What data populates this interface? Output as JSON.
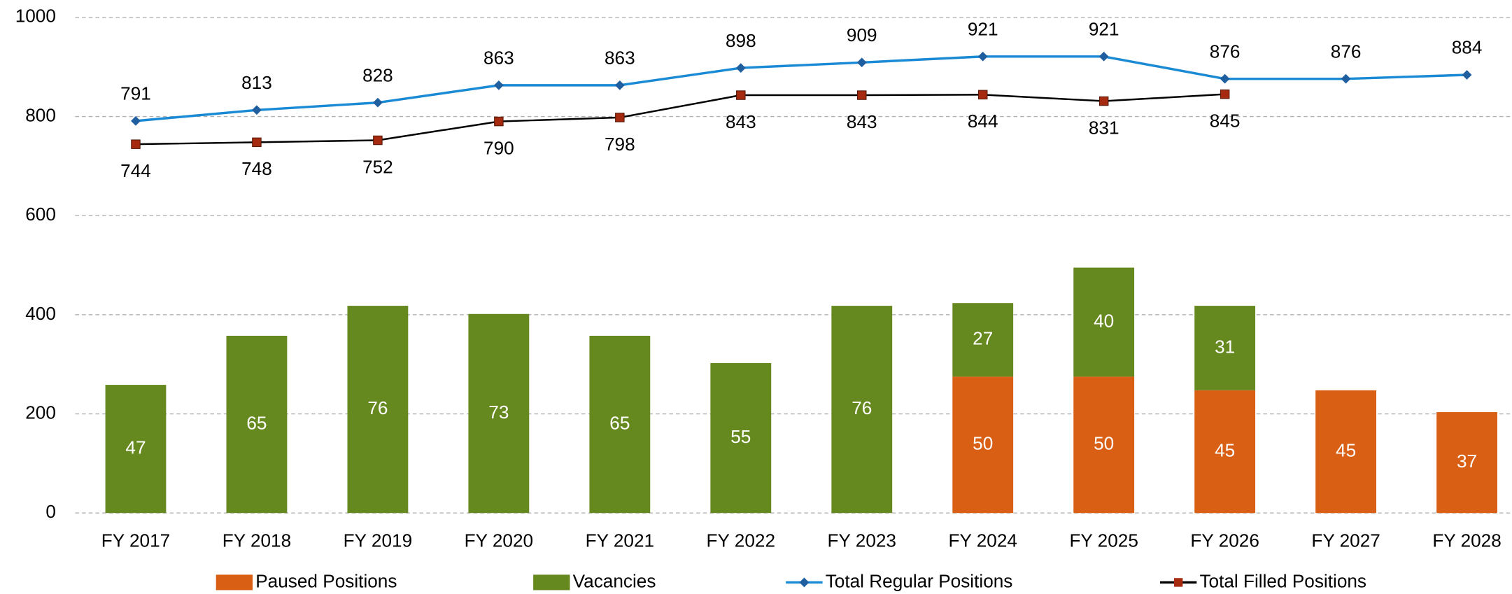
{
  "chart_data": {
    "type": "bar_line",
    "categories": [
      "FY 2017",
      "FY 2018",
      "FY 2019",
      "FY 2020",
      "FY 2021",
      "FY 2022",
      "FY 2023",
      "FY 2024",
      "FY 2025",
      "FY 2026",
      "FY 2027",
      "FY 2028"
    ],
    "series": [
      {
        "name": "Paused Positions",
        "type": "bar",
        "axis": "y2",
        "color": "#d95f14",
        "values": [
          null,
          null,
          null,
          null,
          null,
          null,
          null,
          50,
          50,
          45,
          45,
          37
        ]
      },
      {
        "name": "Vacancies",
        "type": "bar",
        "axis": "y2",
        "color": "#66891f",
        "values": [
          47,
          65,
          76,
          73,
          65,
          55,
          76,
          27,
          40,
          31,
          null,
          null
        ]
      },
      {
        "name": "Total Regular Positions",
        "type": "line",
        "color": "#1a8ad4",
        "marker_color": "#1f5fa0",
        "marker": "diamond",
        "values": [
          791,
          813,
          828,
          863,
          863,
          898,
          909,
          921,
          921,
          876,
          876,
          884
        ]
      },
      {
        "name": "Total Filled Positions",
        "type": "line",
        "color": "#000000",
        "marker_color": "#a52a0f",
        "marker": "square",
        "values": [
          744,
          748,
          752,
          790,
          798,
          843,
          843,
          844,
          831,
          845,
          null,
          null
        ]
      }
    ],
    "stacked": true,
    "ylim": [
      0,
      1000
    ],
    "yticks": [
      0,
      200,
      400,
      600,
      800,
      1000
    ],
    "y2lim": [
      0,
      181.8
    ],
    "grid": true,
    "legend": "bottom"
  }
}
